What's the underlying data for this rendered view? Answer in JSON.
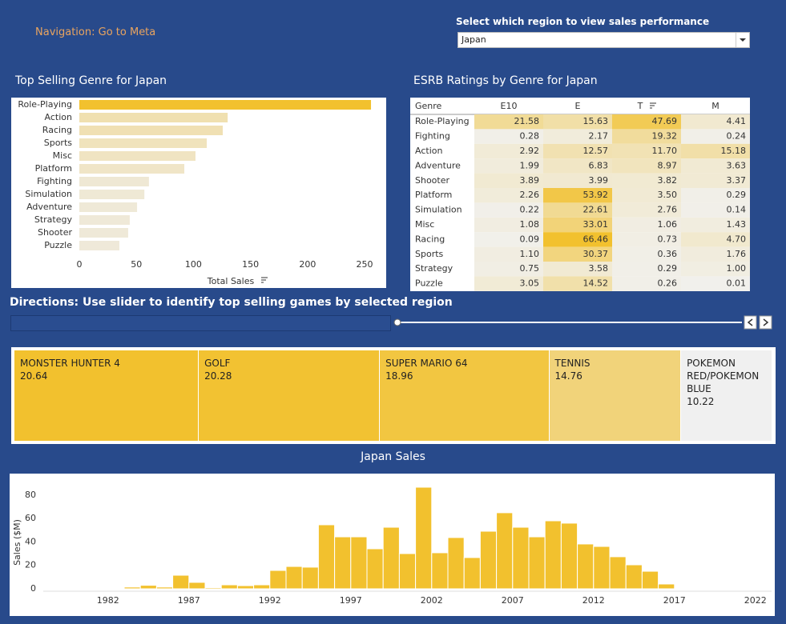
{
  "navigation": "Navigation: Go to Meta",
  "region_select": {
    "label": "Select which region to view sales performance",
    "value": "Japan"
  },
  "directions": "Directions: Use slider to identify top selling games by selected region",
  "chart_data": [
    {
      "type": "bar",
      "orientation": "horizontal",
      "title": "Top Selling Genre for Japan",
      "categories": [
        "Role-Playing",
        "Action",
        "Racing",
        "Sports",
        "Misc",
        "Platform",
        "Fighting",
        "Simulation",
        "Adventure",
        "Strategy",
        "Shooter",
        "Puzzle"
      ],
      "values": [
        255.6,
        130,
        125.7,
        111.7,
        101.8,
        92,
        61,
        57,
        50.6,
        44.2,
        42.8,
        35.1
      ],
      "xlim": [
        0,
        264
      ],
      "xticks": [
        0,
        50,
        100,
        150,
        200,
        250
      ],
      "xlabel": "Total Sales",
      "colors": [
        "#efede8",
        "#f2c12e"
      ]
    },
    {
      "type": "heatmap",
      "title": "ESRB Ratings by Genre for Japan",
      "corner_label": "Genre",
      "columns": [
        "E10",
        "E",
        "T",
        "M"
      ],
      "rows": [
        "Role-Playing",
        "Fighting",
        "Action",
        "Adventure",
        "Shooter",
        "Platform",
        "Simulation",
        "Misc",
        "Racing",
        "Sports",
        "Strategy",
        "Puzzle"
      ],
      "values": [
        [
          21.58,
          15.63,
          47.69,
          4.41
        ],
        [
          0.28,
          2.17,
          19.32,
          0.24
        ],
        [
          2.92,
          12.57,
          11.7,
          15.18
        ],
        [
          1.99,
          6.83,
          8.97,
          3.63
        ],
        [
          3.89,
          3.99,
          3.82,
          3.37
        ],
        [
          2.26,
          53.92,
          3.5,
          0.29
        ],
        [
          0.22,
          22.61,
          2.76,
          0.14
        ],
        [
          1.08,
          33.01,
          1.06,
          1.43
        ],
        [
          0.09,
          66.46,
          0.73,
          4.7
        ],
        [
          1.1,
          30.37,
          0.36,
          1.76
        ],
        [
          0.75,
          3.58,
          0.29,
          1
        ],
        [
          3.05,
          14.52,
          0.26,
          0.01
        ]
      ],
      "value_labels": [
        [
          "21.58",
          "15.63",
          "47.69",
          "4.41"
        ],
        [
          "0.28",
          "2.17",
          "19.32",
          "0.24"
        ],
        [
          "2.92",
          "12.57",
          "11.70",
          "15.18"
        ],
        [
          "1.99",
          "6.83",
          "8.97",
          "3.63"
        ],
        [
          "3.89",
          "3.99",
          "3.82",
          "3.37"
        ],
        [
          "2.26",
          "53.92",
          "3.50",
          "0.29"
        ],
        [
          "0.22",
          "22.61",
          "2.76",
          "0.14"
        ],
        [
          "1.08",
          "33.01",
          "1.06",
          "1.43"
        ],
        [
          "0.09",
          "66.46",
          "0.73",
          "4.70"
        ],
        [
          "1.10",
          "30.37",
          "0.36",
          "1.76"
        ],
        [
          "0.75",
          "3.58",
          "0.29",
          "1.00"
        ],
        [
          "3.05",
          "14.52",
          "0.26",
          "0.01"
        ]
      ],
      "colors": [
        "#f1f0ec",
        "#f2c12e"
      ]
    },
    {
      "type": "treemap",
      "categories": [
        "MONSTER HUNTER 4",
        "GOLF",
        "SUPER MARIO 64",
        "TENNIS",
        "POKEMON RED/POKEMON BLUE"
      ],
      "values": [
        20.64,
        20.28,
        18.96,
        14.76,
        10.22
      ],
      "colors": [
        "#f0f0f0",
        "#f2c12e"
      ]
    },
    {
      "type": "histogram",
      "title": "Japan Sales",
      "ylabel": "Sales ($M)",
      "bins": [
        1983,
        1984,
        1985,
        1986,
        1987,
        1988,
        1989,
        1990,
        1991,
        1992,
        1993,
        1994,
        1995,
        1996,
        1997,
        1998,
        1999,
        2000,
        2001,
        2002,
        2003,
        2004,
        2005,
        2006,
        2007,
        2008,
        2009,
        2010,
        2011,
        2012,
        2013,
        2014,
        2015,
        2016,
        2017
      ],
      "values": [
        1.5,
        3,
        1.5,
        11.6,
        5.5,
        1,
        3.4,
        2.7,
        3.4,
        15.7,
        19.1,
        18.5,
        54.7,
        44.4,
        44.4,
        34.2,
        52.6,
        30.1,
        86.8,
        30.8,
        43.8,
        26.7,
        49.2,
        65,
        52.6,
        44.4,
        58.1,
        56.1,
        38.3,
        36.2,
        27.4,
        20.5,
        15,
        4.1
      ],
      "xlim": [
        1978,
        2023
      ],
      "xticks": [
        1982,
        1987,
        1992,
        1997,
        2002,
        2007,
        2012,
        2017,
        2022
      ],
      "ylim": [
        0,
        95
      ],
      "yticks": [
        0,
        20,
        40,
        60,
        80
      ],
      "color": "#f2c12e"
    }
  ]
}
